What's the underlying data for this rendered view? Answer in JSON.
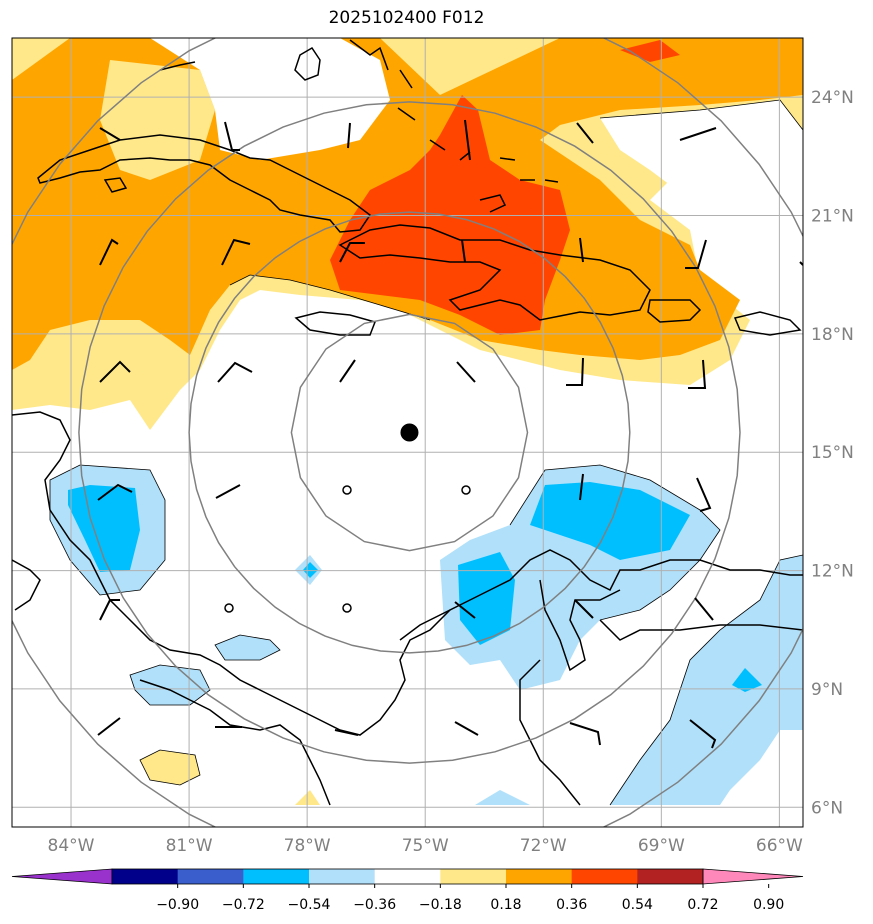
{
  "title": "2025102400 F012",
  "lon_labels": [
    "84°W",
    "81°W",
    "78°W",
    "75°W",
    "72°W",
    "69°W",
    "66°W"
  ],
  "lat_labels": [
    "6°N",
    "9°N",
    "12°N",
    "15°N",
    "18°N",
    "21°N",
    "24°N"
  ],
  "lon_values": [
    -84,
    -81,
    -78,
    -75,
    -72,
    -69,
    -66
  ],
  "lat_values": [
    6,
    9,
    12,
    15,
    18,
    21,
    24
  ],
  "extent": {
    "lon_min": -85.5,
    "lon_max": -65.4,
    "lat_min": 5.5,
    "lat_max": 25.5
  },
  "storm_center": {
    "lon": -75.4,
    "lat": 15.5
  },
  "range_rings_deg": [
    3,
    5.6,
    8.4,
    11.2
  ],
  "colorbar": {
    "ticks": [
      "−0.90",
      "−0.72",
      "−0.54",
      "−0.36",
      "−0.18",
      "0.18",
      "0.36",
      "0.54",
      "0.72",
      "0.90"
    ],
    "colors": [
      "#9932cc",
      "#00008b",
      "#3a5fcd",
      "#00bfff",
      "#b0e0fa",
      "#ffffff",
      "#ffe88a",
      "#ffa500",
      "#ff4500",
      "#b22222",
      "#ff88bb"
    ]
  },
  "shading_colors": {
    "light_blue": "#b0e0fa",
    "blue": "#00bfff",
    "light_yellow": "#ffe88a",
    "orange": "#ffa500",
    "red_orange": "#ff4500"
  }
}
